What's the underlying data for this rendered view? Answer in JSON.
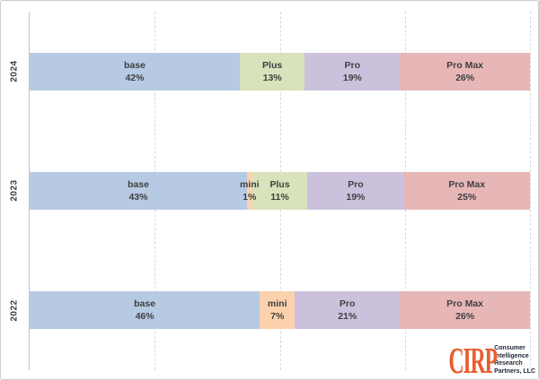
{
  "chart_data": {
    "type": "bar",
    "variant": "stacked-100-horizontal",
    "title": "",
    "xlabel": "",
    "ylabel": "",
    "categories": [
      "2024",
      "2023",
      "2022"
    ],
    "series": [
      {
        "name": "base",
        "values": [
          42,
          43,
          46
        ],
        "color": "#b7cae3"
      },
      {
        "name": "mini",
        "values": [
          0,
          1,
          7
        ],
        "color": "#fbd2ad"
      },
      {
        "name": "Plus",
        "values": [
          13,
          11,
          0
        ],
        "color": "#d8e2bb"
      },
      {
        "name": "Pro",
        "values": [
          19,
          19,
          21
        ],
        "color": "#ccc1dc"
      },
      {
        "name": "Pro Max",
        "values": [
          26,
          25,
          26
        ],
        "color": "#e7b6b7"
      }
    ],
    "value_suffix": "%",
    "xlim": [
      0,
      100
    ],
    "gridlines_pct": [
      25,
      50,
      75,
      100
    ],
    "grid": "vertical-dashed",
    "legend": "none",
    "data_labels": "inside-segment: name and percent",
    "label_color": "#3f3f3f"
  },
  "logo": {
    "abbr": "CIRP",
    "lines": [
      "Consumer",
      "Intelligence",
      "Research",
      "Partners, LLC"
    ],
    "abbr_color": "#e95c2e",
    "text_color": "#202a38"
  }
}
